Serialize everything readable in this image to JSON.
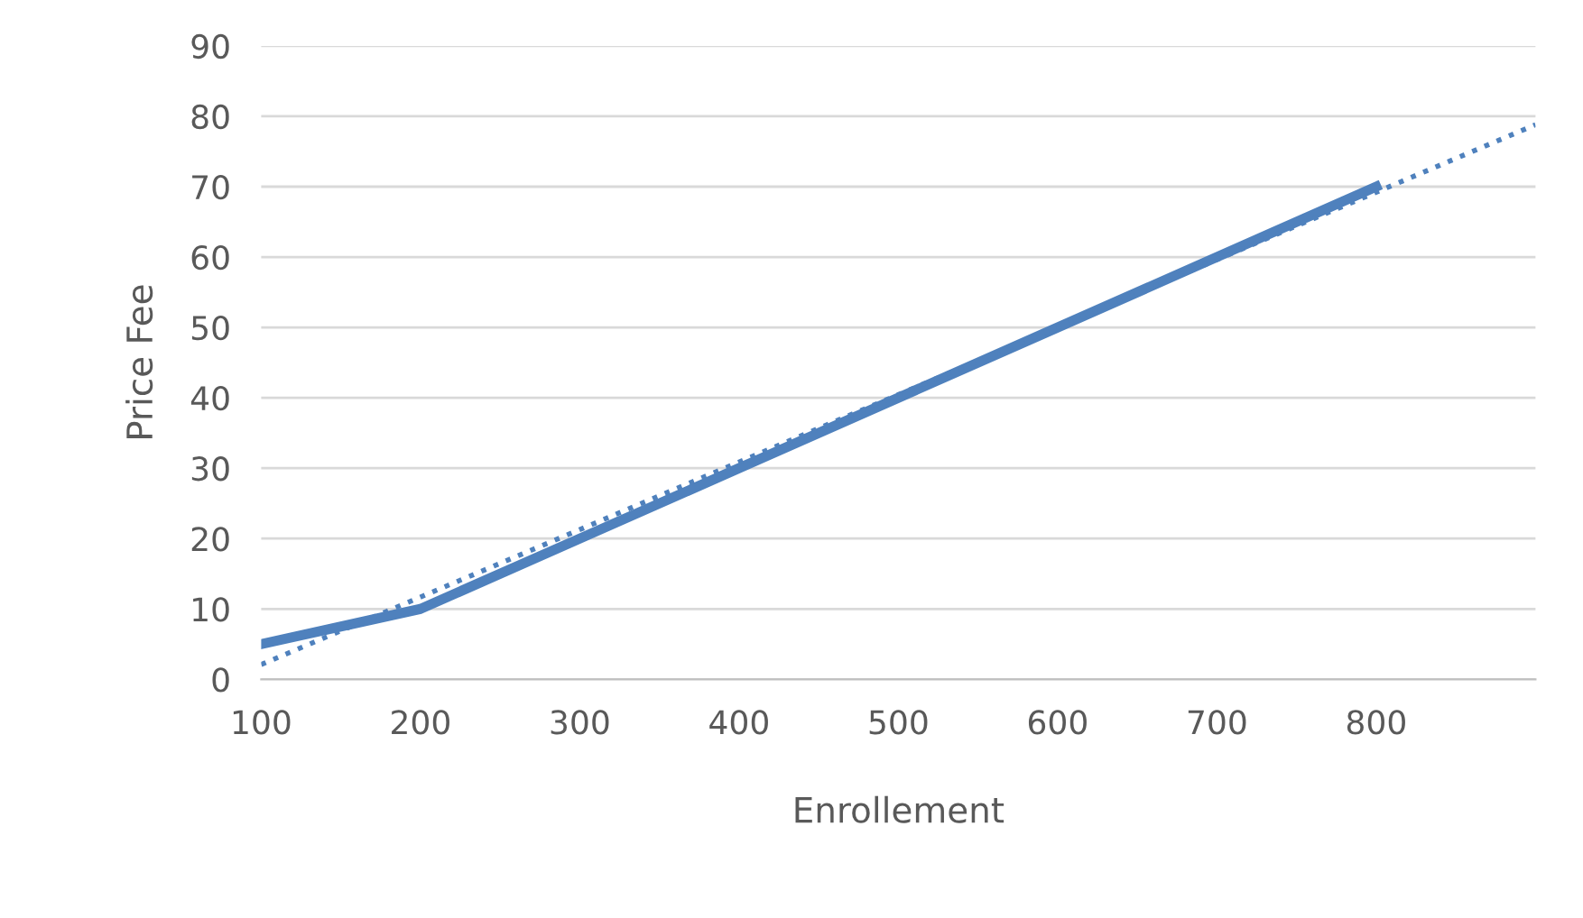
{
  "chart_data": {
    "type": "line",
    "xlabel": "Enrollement",
    "ylabel": "Price Fee",
    "series": [
      {
        "color": "#4f81bd",
        "x": [
          100,
          200,
          300,
          400,
          500,
          600,
          700,
          800
        ],
        "values": [
          5,
          10,
          20,
          30,
          40,
          50,
          60,
          70
        ],
        "line_style": "solid"
      },
      {
        "color": "#4f81bd",
        "x": [
          100,
          900
        ],
        "values": [
          2.1,
          78.8
        ],
        "line_style": "dotted"
      }
    ],
    "xlim": [
      100,
      900
    ],
    "xticks": [
      100,
      200,
      300,
      400,
      500,
      600,
      700,
      800
    ],
    "ylim": [
      0,
      90
    ],
    "yticks": [
      0,
      10,
      20,
      30,
      40,
      50,
      60,
      70,
      80,
      90
    ],
    "grid": "y",
    "legend": false
  }
}
